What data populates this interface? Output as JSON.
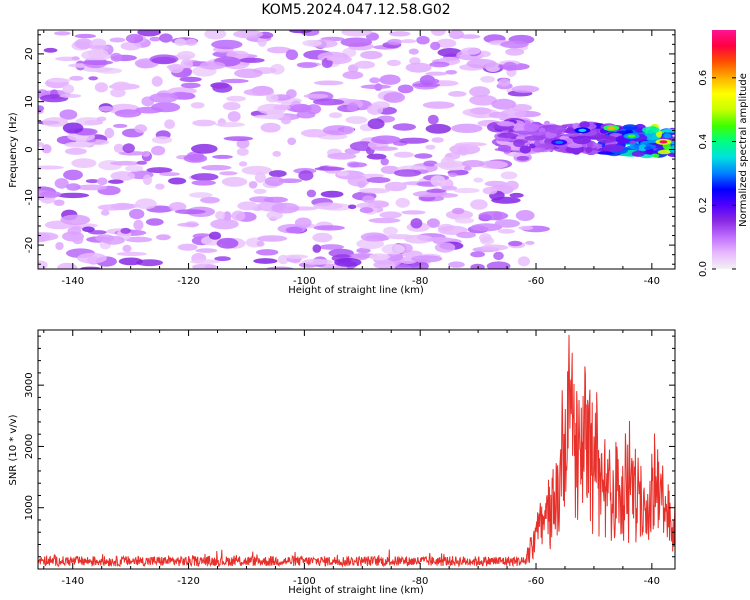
{
  "title": "KOM5.2024.047.12.58.G02",
  "chart_data": [
    {
      "type": "heatmap",
      "xlabel": "Height of straight line (km)",
      "ylabel": "Frequency (Hz)",
      "xlim": [
        -146,
        -36
      ],
      "ylim": [
        -25,
        25
      ],
      "x_ticks": [
        -140,
        -120,
        -100,
        -80,
        -60,
        -40
      ],
      "y_ticks": [
        -20,
        -10,
        0,
        10,
        20
      ],
      "colorbar": {
        "label": "Normalized spectral amplitude",
        "range": [
          0.0,
          0.75
        ],
        "ticks": [
          0.0,
          0.2,
          0.4,
          0.6
        ],
        "colormap": [
          "#f2f2f2",
          "#e8b8ff",
          "#c070ff",
          "#8a2be2",
          "#5000ff",
          "#0000ff",
          "#0080ff",
          "#00e0e0",
          "#00ff80",
          "#40ff00",
          "#c8ff00",
          "#ffff00",
          "#ffb000",
          "#ff5000",
          "#ff0040",
          "#ff1493"
        ]
      },
      "background_noise": {
        "x_range": [
          -146,
          -62
        ],
        "freq_range": [
          -25,
          25
        ],
        "typical_amplitude": 0.08
      },
      "signal_band": {
        "x_range": [
          -66,
          -36
        ],
        "center_freq_hz": 3,
        "peak_amplitude": 0.72,
        "peak_x": -38
      }
    },
    {
      "type": "line",
      "xlabel": "Height of straight line (km)",
      "ylabel": "SNR (10 * v/v)",
      "xlim": [
        -146,
        -36
      ],
      "ylim": [
        0,
        3900
      ],
      "x_ticks": [
        -140,
        -120,
        -100,
        -80,
        -60,
        -40
      ],
      "y_ticks": [
        1000,
        2000,
        3000
      ],
      "color": "#e8302a",
      "noise_floor": 150,
      "key_points": [
        {
          "x": -146,
          "y": 150
        },
        {
          "x": -70,
          "y": 170
        },
        {
          "x": -62,
          "y": 300
        },
        {
          "x": -58,
          "y": 1400
        },
        {
          "x": -56,
          "y": 2300
        },
        {
          "x": -54.5,
          "y": 3800
        },
        {
          "x": -53,
          "y": 3100
        },
        {
          "x": -51,
          "y": 3500
        },
        {
          "x": -49,
          "y": 2500
        },
        {
          "x": -46,
          "y": 2100
        },
        {
          "x": -43.5,
          "y": 2900
        },
        {
          "x": -41,
          "y": 1200
        },
        {
          "x": -39.5,
          "y": 2200
        },
        {
          "x": -38,
          "y": 1600
        },
        {
          "x": -36,
          "y": 1100
        }
      ]
    }
  ]
}
